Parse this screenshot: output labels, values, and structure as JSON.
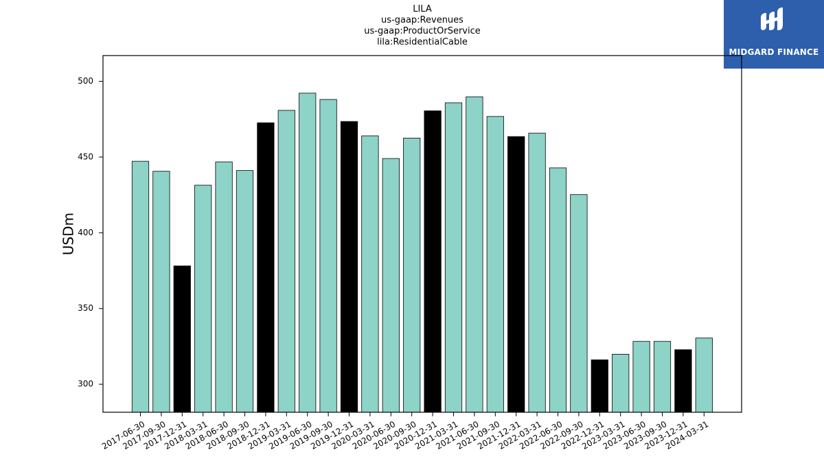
{
  "chart_data": {
    "type": "bar",
    "title": [
      "LILA",
      "us-gaap:Revenues",
      "us-gaap:ProductOrService",
      "lila:ResidentialCable"
    ],
    "ylabel": "USDm",
    "xlabel": "",
    "ylim": [
      281.5,
      517
    ],
    "yticks": [
      300,
      350,
      400,
      450,
      500
    ],
    "categories": [
      "2017-06-30",
      "2017-09-30",
      "2017-12-31",
      "2018-03-31",
      "2018-06-30",
      "2018-09-30",
      "2018-12-31",
      "2019-03-31",
      "2019-06-30",
      "2019-09-30",
      "2019-12-31",
      "2020-03-31",
      "2020-06-30",
      "2020-09-30",
      "2020-12-31",
      "2021-03-31",
      "2021-06-30",
      "2021-09-30",
      "2021-12-31",
      "2022-03-31",
      "2022-06-30",
      "2022-09-30",
      "2022-12-31",
      "2023-03-31",
      "2023-06-30",
      "2023-09-30",
      "2023-12-31",
      "2024-03-31"
    ],
    "values": [
      447.2,
      440.6,
      378.1,
      431.4,
      446.8,
      441.1,
      472.6,
      480.8,
      492.2,
      488.0,
      473.5,
      464.0,
      449.0,
      462.5,
      480.5,
      485.8,
      489.8,
      476.8,
      463.5,
      465.8,
      442.8,
      425.2,
      316.1,
      319.8,
      328.3,
      328.3,
      322.8,
      330.5
    ],
    "highlighted": [
      "2017-12-31",
      "2018-12-31",
      "2019-12-31",
      "2020-12-31",
      "2021-12-31",
      "2022-12-31",
      "2023-12-31"
    ],
    "colors": {
      "bar": "#8dd3c7",
      "highlight": "#000000",
      "edge": "#000000"
    },
    "grid": false
  },
  "logo": {
    "text": "MIDGARD FINANCE"
  }
}
